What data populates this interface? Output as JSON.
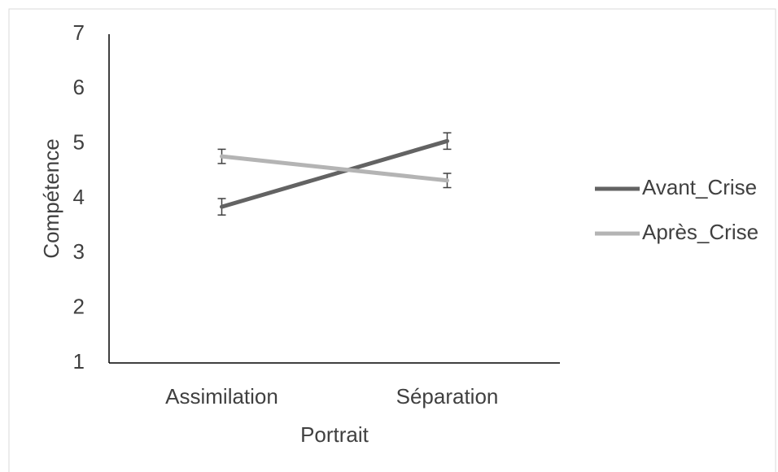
{
  "chart_data": {
    "type": "line",
    "title": "",
    "xlabel": "Portrait",
    "ylabel": "Compétence",
    "categories": [
      "Assimilation",
      "Séparation"
    ],
    "ylim": [
      1,
      7
    ],
    "yticks": [
      "1",
      "2",
      "3",
      "4",
      "5",
      "6",
      "7"
    ],
    "grid": false,
    "legend_position": "right",
    "series": [
      {
        "name": "Avant_Crise",
        "color": "#636363",
        "values": [
          3.85,
          5.05
        ],
        "error": [
          0.15,
          0.15
        ]
      },
      {
        "name": "Après_Crise",
        "color": "#b4b4b4",
        "values": [
          4.77,
          4.33
        ],
        "error": [
          0.13,
          0.13
        ]
      }
    ]
  }
}
